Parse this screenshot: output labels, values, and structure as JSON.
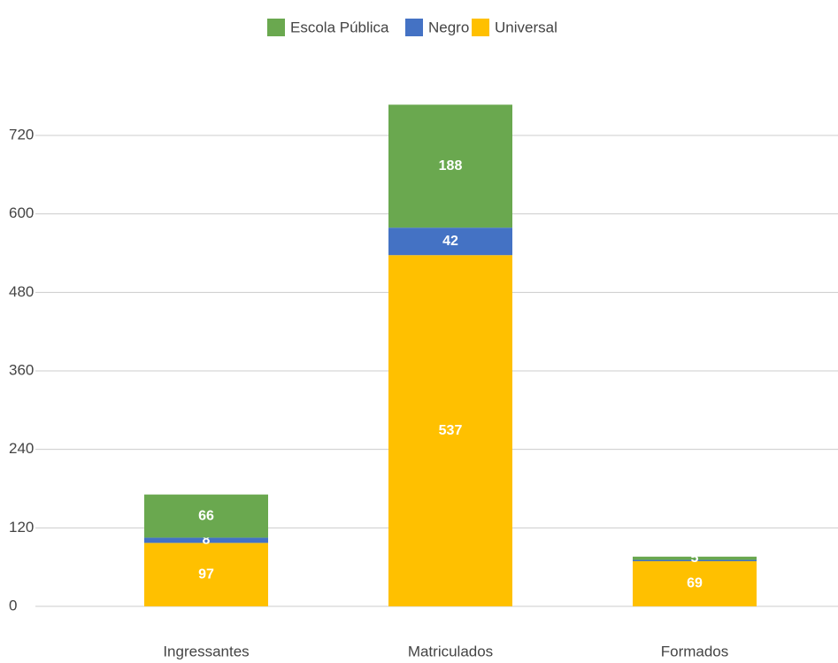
{
  "chart_data": {
    "type": "stacked_bar",
    "categories": [
      "Ingressantes",
      "Matriculados",
      "Formados"
    ],
    "series": [
      {
        "name": "Escola Pública",
        "color": "#6aa84f",
        "values": [
          66,
          188,
          5
        ]
      },
      {
        "name": "Negro",
        "color": "#4472c4",
        "values": [
          8,
          42,
          2
        ]
      },
      {
        "name": "Universal",
        "color": "#ffc000",
        "values": [
          97,
          537,
          69
        ]
      }
    ],
    "ylim": [
      0,
      720
    ],
    "yticks": [
      0,
      120,
      240,
      360,
      480,
      600,
      720
    ],
    "grid": true,
    "legend": "top"
  }
}
